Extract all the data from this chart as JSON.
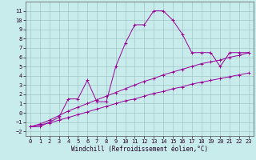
{
  "xlabel": "Windchill (Refroidissement éolien,°C)",
  "x_values": [
    0,
    1,
    2,
    3,
    4,
    5,
    6,
    7,
    8,
    9,
    10,
    11,
    12,
    13,
    14,
    15,
    16,
    17,
    18,
    19,
    20,
    21,
    22,
    23
  ],
  "y_curve": [
    -1.5,
    -1.5,
    -1.0,
    -0.5,
    1.5,
    1.5,
    3.5,
    1.2,
    1.2,
    5.0,
    7.5,
    9.5,
    9.5,
    11.0,
    11.0,
    10.0,
    8.5,
    6.5,
    6.5,
    6.5,
    5.0,
    6.5,
    6.5,
    6.5
  ],
  "y_line1": [
    -1.5,
    -1.2,
    -0.8,
    -0.3,
    0.2,
    0.6,
    1.0,
    1.4,
    1.8,
    2.2,
    2.6,
    3.0,
    3.4,
    3.7,
    4.1,
    4.4,
    4.7,
    5.0,
    5.3,
    5.5,
    5.7,
    6.0,
    6.2,
    6.5
  ],
  "y_line2": [
    -1.5,
    -1.3,
    -1.1,
    -0.8,
    -0.5,
    -0.2,
    0.1,
    0.4,
    0.7,
    1.0,
    1.3,
    1.5,
    1.8,
    2.1,
    2.3,
    2.6,
    2.8,
    3.1,
    3.3,
    3.5,
    3.7,
    3.9,
    4.1,
    4.3
  ],
  "bg_color": "#c8ecec",
  "line_color": "#990099",
  "grid_color": "#9bbfbf",
  "ylim": [
    -2.5,
    12
  ],
  "xlim": [
    -0.5,
    23.5
  ],
  "yticks": [
    -2,
    -1,
    0,
    1,
    2,
    3,
    4,
    5,
    6,
    7,
    8,
    9,
    10,
    11
  ],
  "xticks": [
    0,
    1,
    2,
    3,
    4,
    5,
    6,
    7,
    8,
    9,
    10,
    11,
    12,
    13,
    14,
    15,
    16,
    17,
    18,
    19,
    20,
    21,
    22,
    23
  ],
  "tick_fontsize": 5.0,
  "xlabel_fontsize": 5.5,
  "linewidth": 0.7,
  "markersize": 2.5
}
